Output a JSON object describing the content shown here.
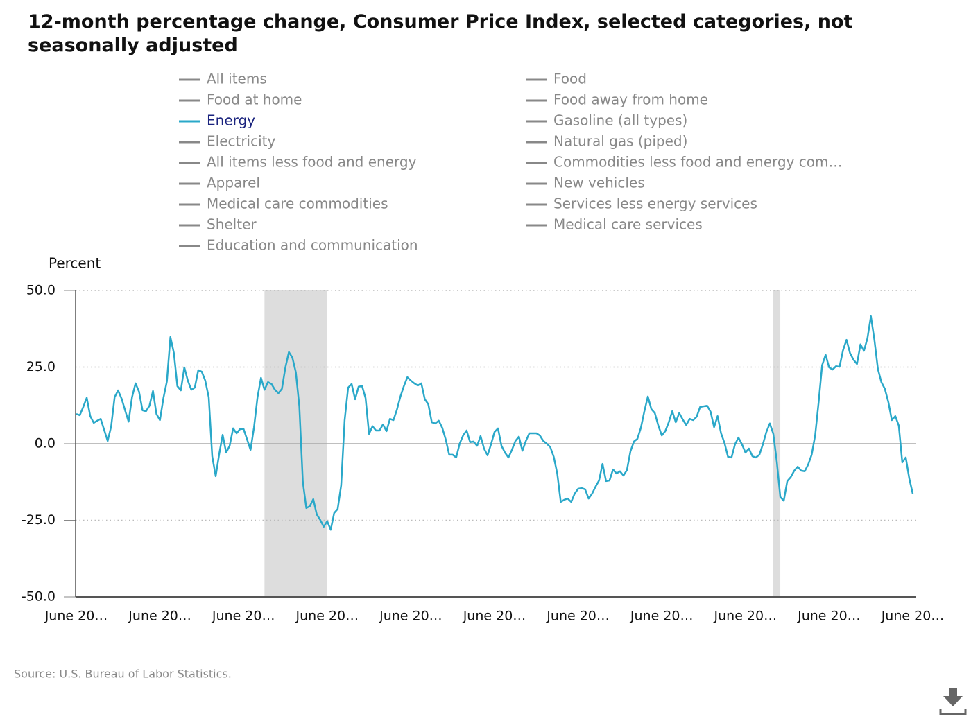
{
  "chart_data": {
    "type": "line",
    "title": "12-month percentage change, Consumer Price Index, selected categories, not seasonally adjusted",
    "y_label": "Percent",
    "source": "Source: U.S. Bureau of Labor Statistics.",
    "ylim": [
      -50,
      50
    ],
    "yticks": [
      {
        "value": 50,
        "label": "50.0"
      },
      {
        "value": 25,
        "label": "25.0"
      },
      {
        "value": 0,
        "label": "0.0"
      },
      {
        "value": -25,
        "label": "-25.0"
      },
      {
        "value": -50,
        "label": "-50.0"
      }
    ],
    "grid": true,
    "shaded_ranges": [
      {
        "start": 54,
        "end": 72
      },
      {
        "start": 200,
        "end": 202
      }
    ],
    "categories": [
      "June 20…",
      null,
      null,
      null,
      null,
      null,
      null,
      null,
      null,
      null,
      null,
      null,
      null,
      null,
      null,
      null,
      null,
      null,
      null,
      null,
      null,
      null,
      null,
      null,
      "June 20…",
      null,
      null,
      null,
      null,
      null,
      null,
      null,
      null,
      null,
      null,
      null,
      null,
      null,
      null,
      null,
      null,
      null,
      null,
      null,
      null,
      null,
      null,
      null,
      "June 20…",
      null,
      null,
      null,
      null,
      null,
      null,
      null,
      null,
      null,
      null,
      null,
      null,
      null,
      null,
      null,
      null,
      null,
      null,
      null,
      null,
      null,
      null,
      null,
      "June 20…",
      null,
      null,
      null,
      null,
      null,
      null,
      null,
      null,
      null,
      null,
      null,
      null,
      null,
      null,
      null,
      null,
      null,
      null,
      null,
      null,
      null,
      null,
      null,
      "June 20…",
      null,
      null,
      null,
      null,
      null,
      null,
      null,
      null,
      null,
      null,
      null,
      null,
      null,
      null,
      null,
      null,
      null,
      null,
      null,
      null,
      null,
      null,
      null,
      "June 20…",
      null,
      null,
      null,
      null,
      null,
      null,
      null,
      null,
      null,
      null,
      null,
      null,
      null,
      null,
      null,
      null,
      null,
      null,
      null,
      null,
      null,
      null,
      null,
      "June 20…",
      null,
      null,
      null,
      null,
      null,
      null,
      null,
      null,
      null,
      null,
      null,
      null,
      null,
      null,
      null,
      null,
      null,
      null,
      null,
      null,
      null,
      null,
      null,
      "June 20…",
      null,
      null,
      null,
      null,
      null,
      null,
      null,
      null,
      null,
      null,
      null,
      null,
      null,
      null,
      null,
      null,
      null,
      null,
      null,
      null,
      null,
      null,
      null,
      "June 20…",
      null,
      null,
      null,
      null,
      null,
      null,
      null,
      null,
      null,
      null,
      null,
      null,
      null,
      null,
      null,
      null,
      null,
      null,
      null,
      null,
      null,
      null,
      null,
      "June 20…",
      null,
      null,
      null,
      null,
      null,
      null,
      null,
      null,
      null,
      null,
      null,
      null,
      null,
      null,
      null,
      null,
      null,
      null,
      null,
      null,
      null,
      null,
      null,
      "June 20…"
    ],
    "series": [
      {
        "name": "All items",
        "color": "#888888",
        "visible": false
      },
      {
        "name": "Food",
        "color": "#888888",
        "visible": false
      },
      {
        "name": "Food at home",
        "color": "#888888",
        "visible": false
      },
      {
        "name": "Food away from home",
        "color": "#888888",
        "visible": false
      },
      {
        "name": "Energy",
        "color": "#2aa8c9",
        "visible": true,
        "values": [
          9.7,
          9.3,
          12,
          15,
          9,
          6.8,
          7.5,
          8.1,
          4.5,
          0.9,
          5.6,
          15.2,
          17.4,
          14.7,
          10.9,
          7.2,
          15.2,
          19.7,
          17,
          10.9,
          10.6,
          12.4,
          17.2,
          9.7,
          7.7,
          14.9,
          20.4,
          34.8,
          29.6,
          18.8,
          17.4,
          24.9,
          20.6,
          17.6,
          18.3,
          24,
          23.5,
          20.6,
          15.2,
          -4.1,
          -10.6,
          -3.4,
          2.9,
          -2.9,
          -0.7,
          5,
          3.4,
          4.8,
          4.8,
          1.4,
          -2,
          5.4,
          15.2,
          21.5,
          17.6,
          20.1,
          19.5,
          17.6,
          16.5,
          17.9,
          24.9,
          29.9,
          28.1,
          23.3,
          12.2,
          -12.4,
          -21,
          -20.4,
          -18.1,
          -23.1,
          -24.9,
          -27.1,
          -25.3,
          -28.1,
          -22.6,
          -21.3,
          -13.6,
          7.7,
          18.3,
          19.5,
          14.5,
          18.6,
          18.8,
          14.9,
          3.2,
          5.7,
          4.3,
          4.3,
          6.3,
          4.1,
          8.1,
          7.7,
          11.1,
          15.4,
          18.8,
          21.7,
          20.6,
          19.7,
          19,
          19.7,
          14.5,
          12.9,
          7,
          6.6,
          7.5,
          5.2,
          1.4,
          -3.6,
          -3.6,
          -4.5,
          0,
          2.7,
          4.3,
          0.5,
          0.7,
          -0.7,
          2.5,
          -1.6,
          -3.8,
          -0.2,
          3.8,
          5,
          -0.7,
          -2.9,
          -4.5,
          -2,
          0.9,
          2.3,
          -2.3,
          0.9,
          3.4,
          3.4,
          3.4,
          2.7,
          0.9,
          0,
          -1.1,
          -4.3,
          -9.7,
          -19,
          -18.3,
          -17.9,
          -19,
          -16.3,
          -14.7,
          -14.5,
          -14.9,
          -17.9,
          -16.3,
          -14,
          -12,
          -6.6,
          -12.2,
          -12,
          -8.4,
          -9.7,
          -9,
          -10.4,
          -8.6,
          -2.5,
          0.7,
          1.6,
          5.2,
          10.6,
          15.4,
          11.3,
          10,
          5.9,
          2.7,
          4.1,
          7,
          10.6,
          7,
          10,
          7.9,
          6.1,
          8.1,
          7.7,
          8.8,
          12,
          12.2,
          12.4,
          10.4,
          5.4,
          9,
          3.4,
          0.2,
          -4.3,
          -4.5,
          -0.2,
          2,
          -0.2,
          -2.9,
          -1.6,
          -4.1,
          -4.5,
          -3.6,
          -0.2,
          3.8,
          6.6,
          3.2,
          -5.9,
          -17.4,
          -18.6,
          -12.2,
          -10.9,
          -8.8,
          -7.5,
          -8.8,
          -9,
          -6.8,
          -3.6,
          2.7,
          13.6,
          25.6,
          29,
          24.9,
          24.2,
          25.3,
          25.1,
          30.5,
          33.9,
          29.6,
          27.4,
          26,
          32.4,
          30.3,
          34.4,
          41.6,
          33.9,
          24.4,
          20.1,
          17.9,
          13.6,
          7.7,
          9,
          5.9,
          -6.1,
          -4.5,
          -11.3,
          -16.3
        ]
      },
      {
        "name": "Gasoline (all types)",
        "color": "#888888",
        "visible": false
      },
      {
        "name": "Electricity",
        "color": "#888888",
        "visible": false
      },
      {
        "name": "Natural gas (piped)",
        "color": "#888888",
        "visible": false
      },
      {
        "name": "All items less food and energy",
        "color": "#888888",
        "visible": false
      },
      {
        "name": "Commodities less food and energy com…",
        "color": "#888888",
        "visible": false
      },
      {
        "name": "Apparel",
        "color": "#888888",
        "visible": false
      },
      {
        "name": "New vehicles",
        "color": "#888888",
        "visible": false
      },
      {
        "name": "Medical care commodities",
        "color": "#888888",
        "visible": false
      },
      {
        "name": "Services less energy services",
        "color": "#888888",
        "visible": false
      },
      {
        "name": "Shelter",
        "color": "#888888",
        "visible": false
      },
      {
        "name": "Medical care services",
        "color": "#888888",
        "visible": false
      },
      {
        "name": "Education and communication",
        "color": "#888888",
        "visible": false
      }
    ]
  }
}
